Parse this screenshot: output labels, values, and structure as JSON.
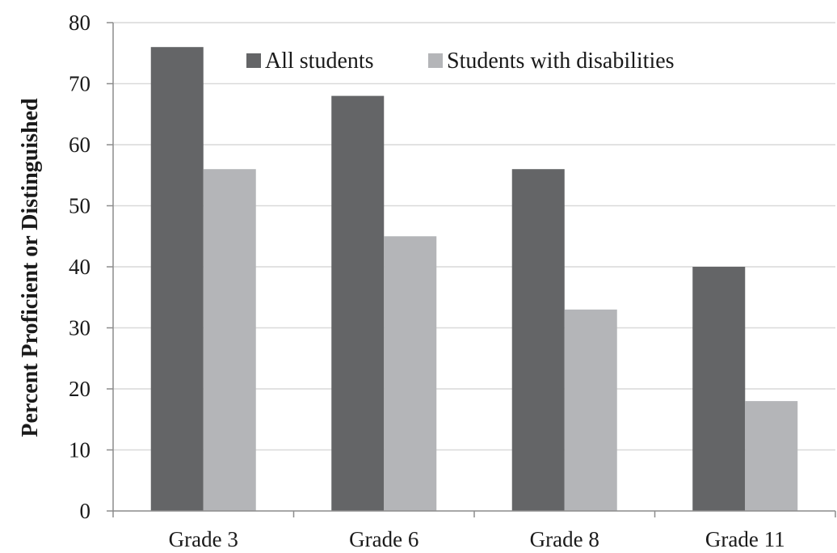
{
  "chart_data": {
    "type": "bar",
    "title": "",
    "xlabel": "",
    "ylabel": "Percent Proficient or Distinguished",
    "categories": [
      "Grade 3",
      "Grade 6",
      "Grade 8",
      "Grade 11"
    ],
    "series": [
      {
        "name": "All students",
        "values": [
          76,
          68,
          56,
          40
        ],
        "color": "#646567"
      },
      {
        "name": "Students with disabilities",
        "values": [
          56,
          45,
          33,
          18
        ],
        "color": "#b4b5b8"
      }
    ],
    "ylim": [
      0,
      80
    ],
    "yticks": [
      0,
      10,
      20,
      30,
      40,
      50,
      60,
      70,
      80
    ],
    "grid": true,
    "legend_position": "top"
  }
}
